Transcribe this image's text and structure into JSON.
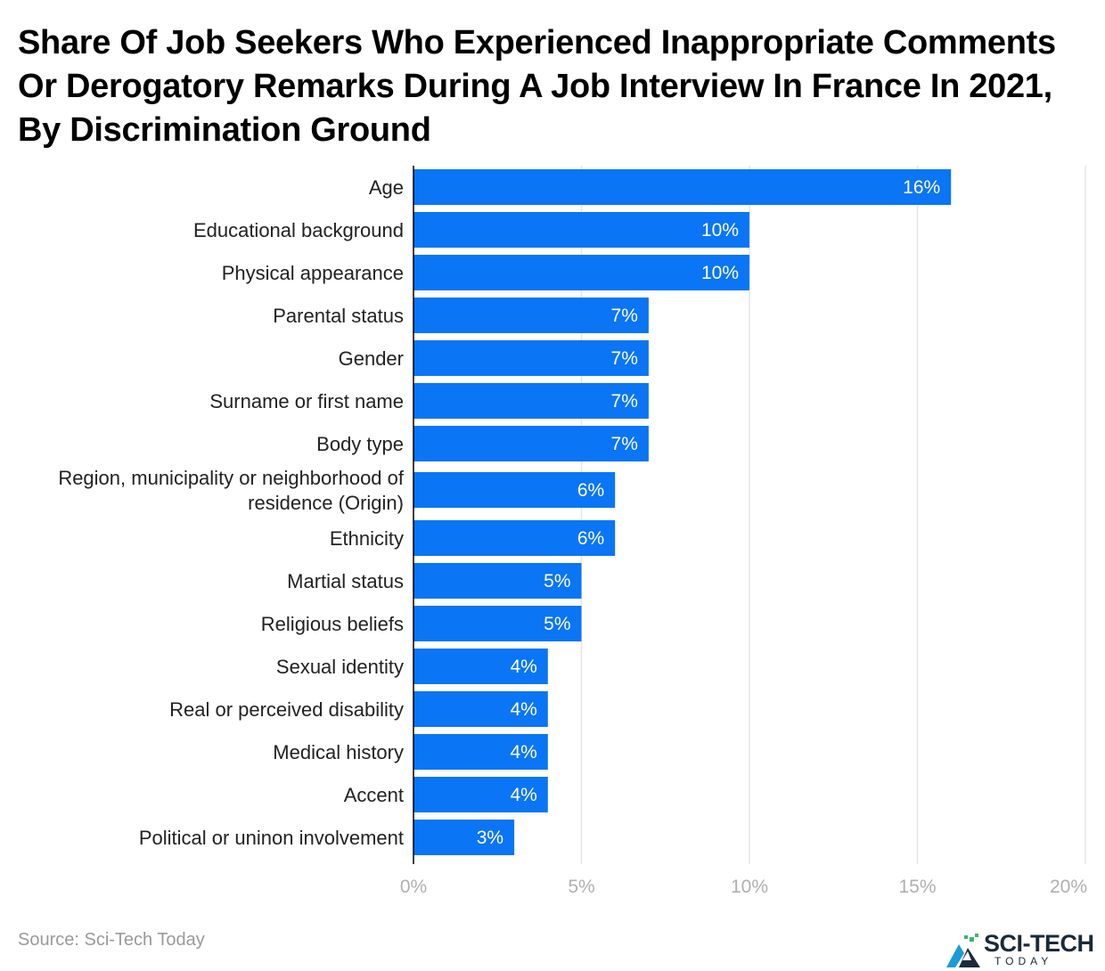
{
  "title": "Share Of Job Seekers Who Experienced Inappropriate Comments Or Derogatory Remarks During A Job Interview In France In 2021, By Discrimination Ground",
  "source": "Source: Sci-Tech Today",
  "logo": {
    "text": "SCI-TECH",
    "subtext": "TODAY"
  },
  "colors": {
    "bar": "#0a75f5",
    "grid": "#e6e6e6",
    "axis": "#000000"
  },
  "chart_data": {
    "type": "bar",
    "orientation": "horizontal",
    "title": "Share Of Job Seekers Who Experienced Inappropriate Comments Or Derogatory Remarks During A Job Interview In France In 2021, By Discrimination Ground",
    "categories": [
      [
        "Age"
      ],
      [
        "Educational background"
      ],
      [
        "Physical appearance"
      ],
      [
        "Parental status"
      ],
      [
        "Gender"
      ],
      [
        "Surname or first name"
      ],
      [
        "Body type"
      ],
      [
        "Region, municipality or neighborhood of",
        "residence (Origin)"
      ],
      [
        "Ethnicity"
      ],
      [
        "Martial status"
      ],
      [
        "Religious beliefs"
      ],
      [
        "Sexual identity"
      ],
      [
        "Real or perceived disability"
      ],
      [
        "Medical history"
      ],
      [
        "Accent"
      ],
      [
        "Political or uninon involvement"
      ]
    ],
    "values": [
      16,
      10,
      10,
      7,
      7,
      7,
      7,
      6,
      6,
      5,
      5,
      4,
      4,
      4,
      4,
      3
    ],
    "value_labels": [
      "16%",
      "10%",
      "10%",
      "7%",
      "7%",
      "7%",
      "7%",
      "6%",
      "6%",
      "5%",
      "5%",
      "4%",
      "4%",
      "4%",
      "4%",
      "3%"
    ],
    "xlim": [
      0,
      20
    ],
    "xticks": [
      0,
      5,
      10,
      15,
      20
    ],
    "xtick_labels": [
      "0%",
      "5%",
      "10%",
      "15%",
      "20%"
    ],
    "grid": true,
    "legend": "none"
  }
}
